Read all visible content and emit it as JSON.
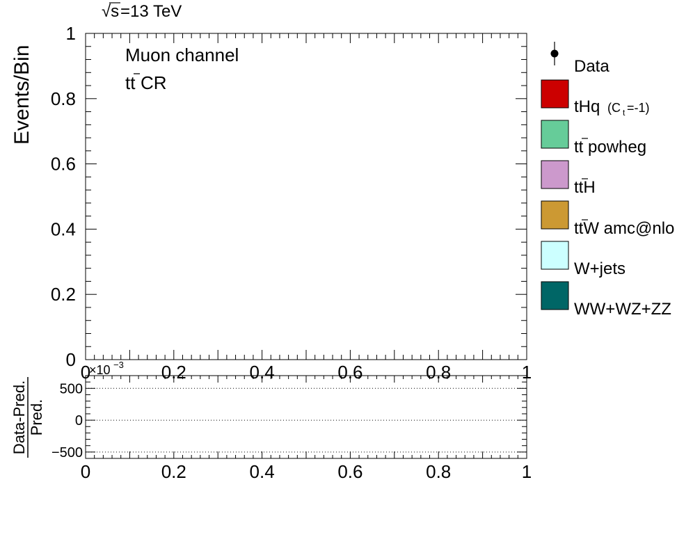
{
  "header": {
    "energy_sqrt": "√s",
    "energy_value": "=13 TeV"
  },
  "annotations": {
    "channel": "Muon channel",
    "region_pre": "tt",
    "region_post": " CR"
  },
  "legend": {
    "entries": [
      {
        "key": "data",
        "marker": "point",
        "label": "Data",
        "color": "#000000"
      },
      {
        "key": "thq",
        "marker": "box",
        "label": "tHq",
        "sublabel": "(C",
        "subscript": "t",
        "sublabel_end": "=-1)",
        "color": "#cc0000"
      },
      {
        "key": "tt",
        "marker": "box",
        "label": "tt powheg",
        "overbar": "tt",
        "color": "#66cc99"
      },
      {
        "key": "tth",
        "marker": "box",
        "label": "ttH",
        "overbar": "tt",
        "color": "#cc99cc"
      },
      {
        "key": "ttw",
        "marker": "box",
        "label": "ttW amc@nlo",
        "overbar": "tt",
        "color": "#cc9933"
      },
      {
        "key": "wjets",
        "marker": "box",
        "label": "W+jets",
        "color": "#ccffff"
      },
      {
        "key": "diboson",
        "marker": "box",
        "label": "WW+WZ+ZZ",
        "color": "#006666"
      }
    ]
  },
  "chart_data": [
    {
      "type": "bar",
      "panel": "main",
      "ylabel": "Events/Bin",
      "xlim": [
        0,
        1
      ],
      "ylim": [
        0,
        1
      ],
      "x_ticks": [
        "0",
        "0.2",
        "0.4",
        "0.6",
        "0.8",
        "1"
      ],
      "y_ticks": [
        "0",
        "0.2",
        "0.4",
        "0.6",
        "0.8",
        "1"
      ],
      "y_tick_values": [
        0,
        0.2,
        0.4,
        0.6,
        0.8,
        1
      ],
      "series": []
    },
    {
      "type": "line",
      "panel": "ratio",
      "ylabel_num": "Data-Pred.",
      "ylabel_den": "Pred.",
      "exponent_label": "×10",
      "exponent": "−3",
      "xlim": [
        0,
        1
      ],
      "ylim": [
        -600,
        700
      ],
      "x_ticks": [
        "0",
        "0.2",
        "0.4",
        "0.6",
        "0.8",
        "1"
      ],
      "y_ticks": [
        "500",
        "0",
        "−500"
      ],
      "y_tick_values": [
        500,
        0,
        -500
      ],
      "reference_lines": [
        500,
        0,
        -500
      ],
      "series": []
    }
  ]
}
